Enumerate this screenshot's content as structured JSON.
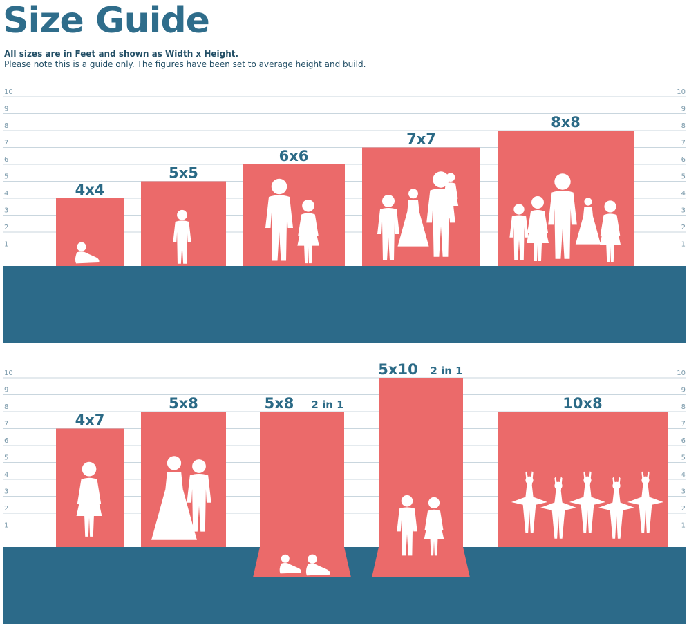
{
  "header": {
    "title": "Size Guide",
    "line1": "All sizes are in Feet and shown as Width x Height.",
    "line2": "Please note this is a guide only. The figures have been set to average height and build."
  },
  "scale_ticks": [
    "1",
    "2",
    "3",
    "4",
    "5",
    "6",
    "7",
    "8",
    "9",
    "10"
  ],
  "colors": {
    "backdrop": "#eb6a6a",
    "floor": "#2c6a89",
    "text": "#2b6a86",
    "grid": "#c9d6de",
    "figure": "#ffffff"
  },
  "panels": [
    {
      "items": [
        {
          "label": "4x4",
          "width_ft": 4,
          "height_ft": 4,
          "figure": "baby-sitting-icon"
        },
        {
          "label": "5x5",
          "width_ft": 5,
          "height_ft": 5,
          "figure": "toddler-icon"
        },
        {
          "label": "6x6",
          "width_ft": 6,
          "height_ft": 6,
          "figure": "mother-child-icon"
        },
        {
          "label": "7x7",
          "width_ft": 7,
          "height_ft": 7,
          "figure": "family-of-four-icon"
        },
        {
          "label": "8x8",
          "width_ft": 8,
          "height_ft": 8,
          "figure": "family-of-five-icon"
        }
      ]
    },
    {
      "items": [
        {
          "label": "4x7",
          "width_ft": 4,
          "height_ft": 7,
          "figure": "posing-woman-icon"
        },
        {
          "label": "5x8",
          "width_ft": 5,
          "height_ft": 8,
          "figure": "wedding-couple-icon"
        },
        {
          "label": "5x8",
          "note": "2 in 1",
          "width_ft": 5,
          "height_ft": 8,
          "floor_sweep": true,
          "figure": "two-babies-icon"
        },
        {
          "label": "5x10",
          "note": "2 in 1",
          "width_ft": 5,
          "height_ft": 10,
          "floor_sweep": true,
          "figure": "two-children-icon"
        },
        {
          "label": "10x8",
          "width_ft": 10,
          "height_ft": 8,
          "figure": "ballerinas-icon"
        }
      ]
    }
  ]
}
